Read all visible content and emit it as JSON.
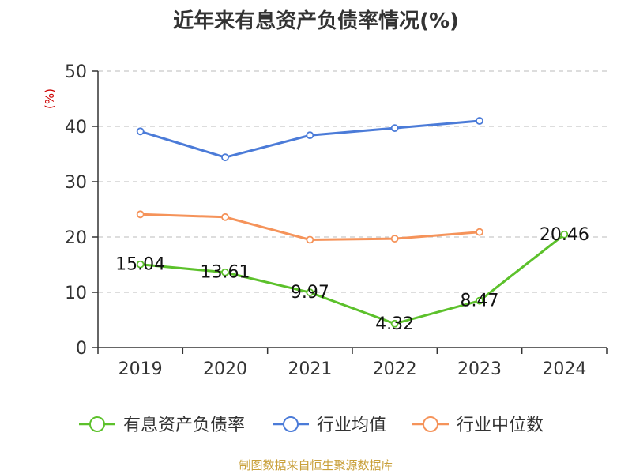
{
  "title": "近年来有息资产负债率情况(%)",
  "source": "制图数据来自恒生聚源数据库",
  "colors": {
    "axis": "#333333",
    "grid": "#bbbbbb",
    "unit": "#cc0000"
  },
  "chart_data": {
    "type": "line",
    "title": "近年来有息资产负债率情况(%)",
    "xlabel": "",
    "ylabel": "(%)",
    "categories": [
      "2019",
      "2020",
      "2021",
      "2022",
      "2023",
      "2024"
    ],
    "ylim": [
      0,
      50
    ],
    "yticks": [
      0,
      10,
      20,
      30,
      40,
      50
    ],
    "grid": true,
    "legend_position": "bottom",
    "series": [
      {
        "name": "有息资产负债率",
        "color": "#5cc12b",
        "values": [
          15.04,
          13.61,
          9.97,
          4.32,
          8.47,
          20.46
        ],
        "labels": [
          "15.04",
          "13.61",
          "9.97",
          "4.32",
          "8.47",
          "20.46"
        ]
      },
      {
        "name": "行业均值",
        "color": "#4b7bd8",
        "values": [
          39.1,
          34.4,
          38.4,
          39.7,
          41.0,
          null
        ]
      },
      {
        "name": "行业中位数",
        "color": "#f5935a",
        "values": [
          24.1,
          23.6,
          19.5,
          19.7,
          20.9,
          null
        ]
      }
    ]
  }
}
